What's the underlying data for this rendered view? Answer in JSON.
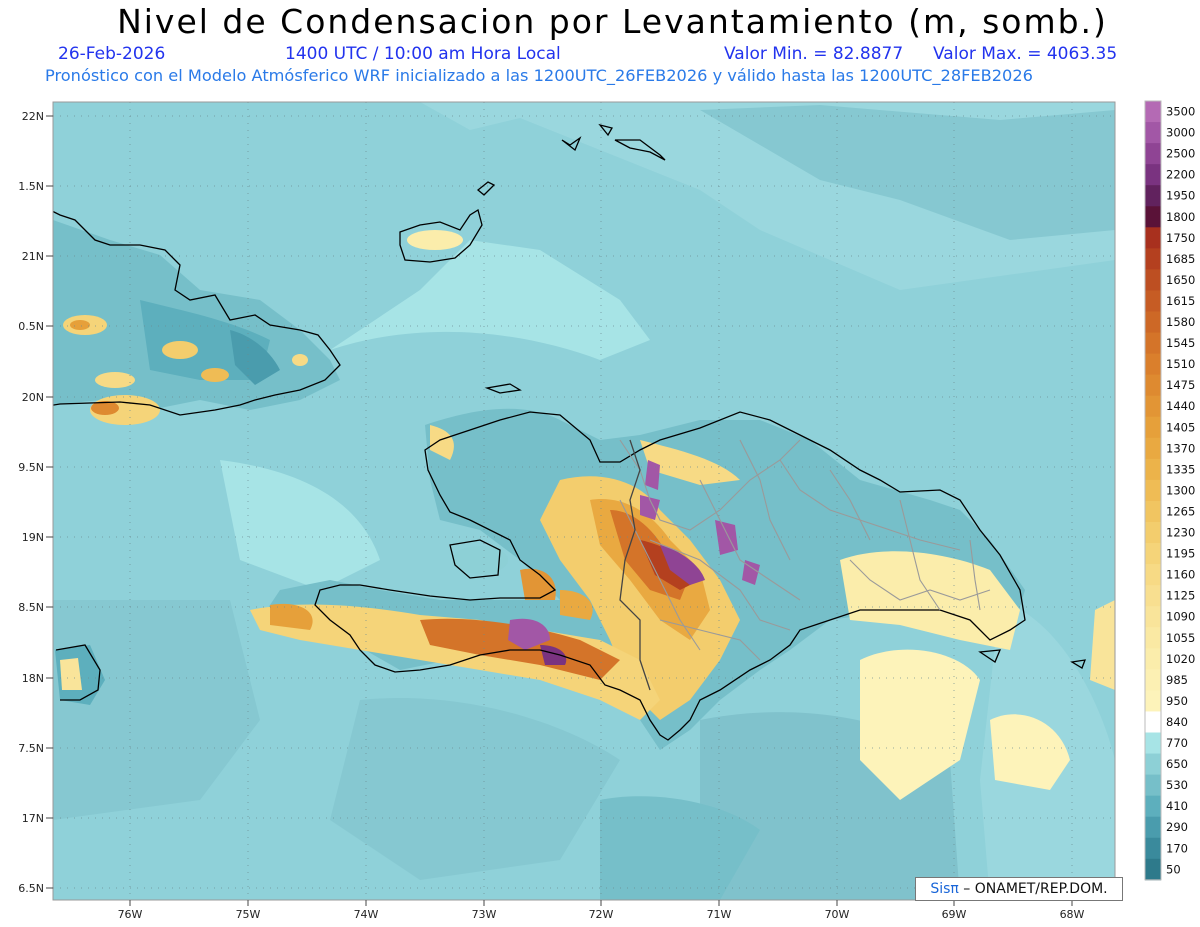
{
  "title": "Nivel de Condensacion por Levantamiento (m, somb.)",
  "date": "26-Feb-2026",
  "time_label": "1400 UTC / 10:00 am Hora Local",
  "min_label": "Valor Min. = 82.8877",
  "max_label": "Valor Max. = 4063.35",
  "model_label": "Pronóstico con el Modelo Atmósferico WRF inicializado a las 1200UTC_26FEB2026 y válido hasta las  1200UTC_28FEB2026",
  "lat_labels": [
    "22N",
    "1.5N",
    "21N",
    "0.5N",
    "20N",
    "9.5N",
    "19N",
    "8.5N",
    "18N",
    "7.5N",
    "17N",
    "6.5N"
  ],
  "lon_labels": [
    "76W",
    "75W",
    "74W",
    "73W",
    "72W",
    "71W",
    "70W",
    "69W",
    "68W"
  ],
  "colorbar": {
    "labels": [
      "3500",
      "3000",
      "2500",
      "2200",
      "1950",
      "1800",
      "1750",
      "1685",
      "1650",
      "1615",
      "1580",
      "1545",
      "1510",
      "1475",
      "1440",
      "1405",
      "1370",
      "1335",
      "1300",
      "1265",
      "1230",
      "1195",
      "1160",
      "1125",
      "1090",
      "1055",
      "1020",
      "985",
      "950",
      "840",
      "770",
      "650",
      "530",
      "410",
      "290",
      "170",
      "50"
    ],
    "colors": [
      "#b46ab4",
      "#a257a6",
      "#8f4494",
      "#7a3380",
      "#61225e",
      "#5a1238",
      "#a8301e",
      "#b4401f",
      "#bd4f22",
      "#c65c24",
      "#cd6826",
      "#d47429",
      "#da7f2c",
      "#de8a30",
      "#e29535",
      "#e6a03a",
      "#e9a941",
      "#ecb34a",
      "#efbc55",
      "#f1c561",
      "#f3cd6d",
      "#f5d479",
      "#f7da85",
      "#f8df90",
      "#f9e49a",
      "#fae9a3",
      "#fbedab",
      "#fcf0b3",
      "#fdf3ba",
      "#ffffff",
      "#a7e4e6",
      "#8dd0d6",
      "#76bfc9",
      "#5dafbd",
      "#4a9cad",
      "#3a8a9c",
      "#2e7a8b"
    ]
  },
  "credit_brand": "Sisπ",
  "credit_text": " – ONAMET/REP.DOM."
}
